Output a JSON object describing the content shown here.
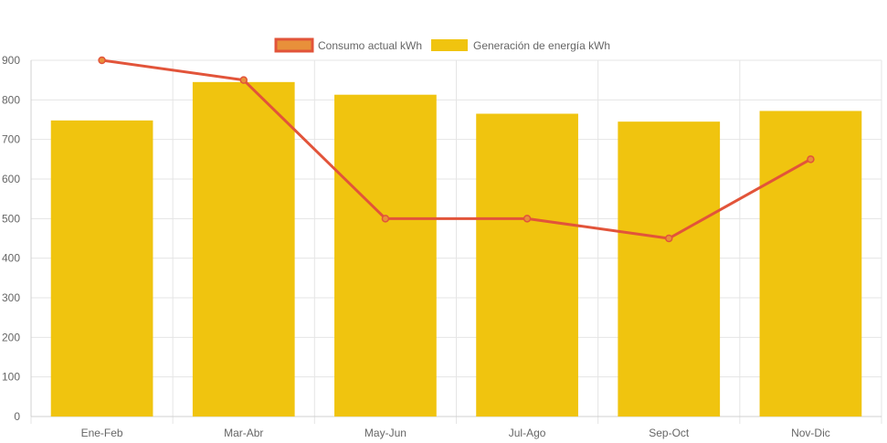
{
  "chart_data": {
    "type": "bar",
    "categories": [
      "Ene-Feb",
      "Mar-Abr",
      "May-Jun",
      "Jul-Ago",
      "Sep-Oct",
      "Nov-Dic"
    ],
    "series": [
      {
        "name": "Consumo actual kWh",
        "type": "line",
        "values": [
          900,
          850,
          500,
          500,
          450,
          650
        ],
        "color": "#e2543a",
        "point_color": "#e8903a"
      },
      {
        "name": "Generación de energía kWh",
        "type": "bar",
        "values": [
          748,
          845,
          813,
          765,
          745,
          772
        ],
        "color": "#f0c40f"
      }
    ],
    "ylim": [
      0,
      900
    ],
    "yticks": [
      0,
      100,
      200,
      300,
      400,
      500,
      600,
      700,
      800,
      900
    ],
    "grid": true,
    "legend_position": "top"
  }
}
